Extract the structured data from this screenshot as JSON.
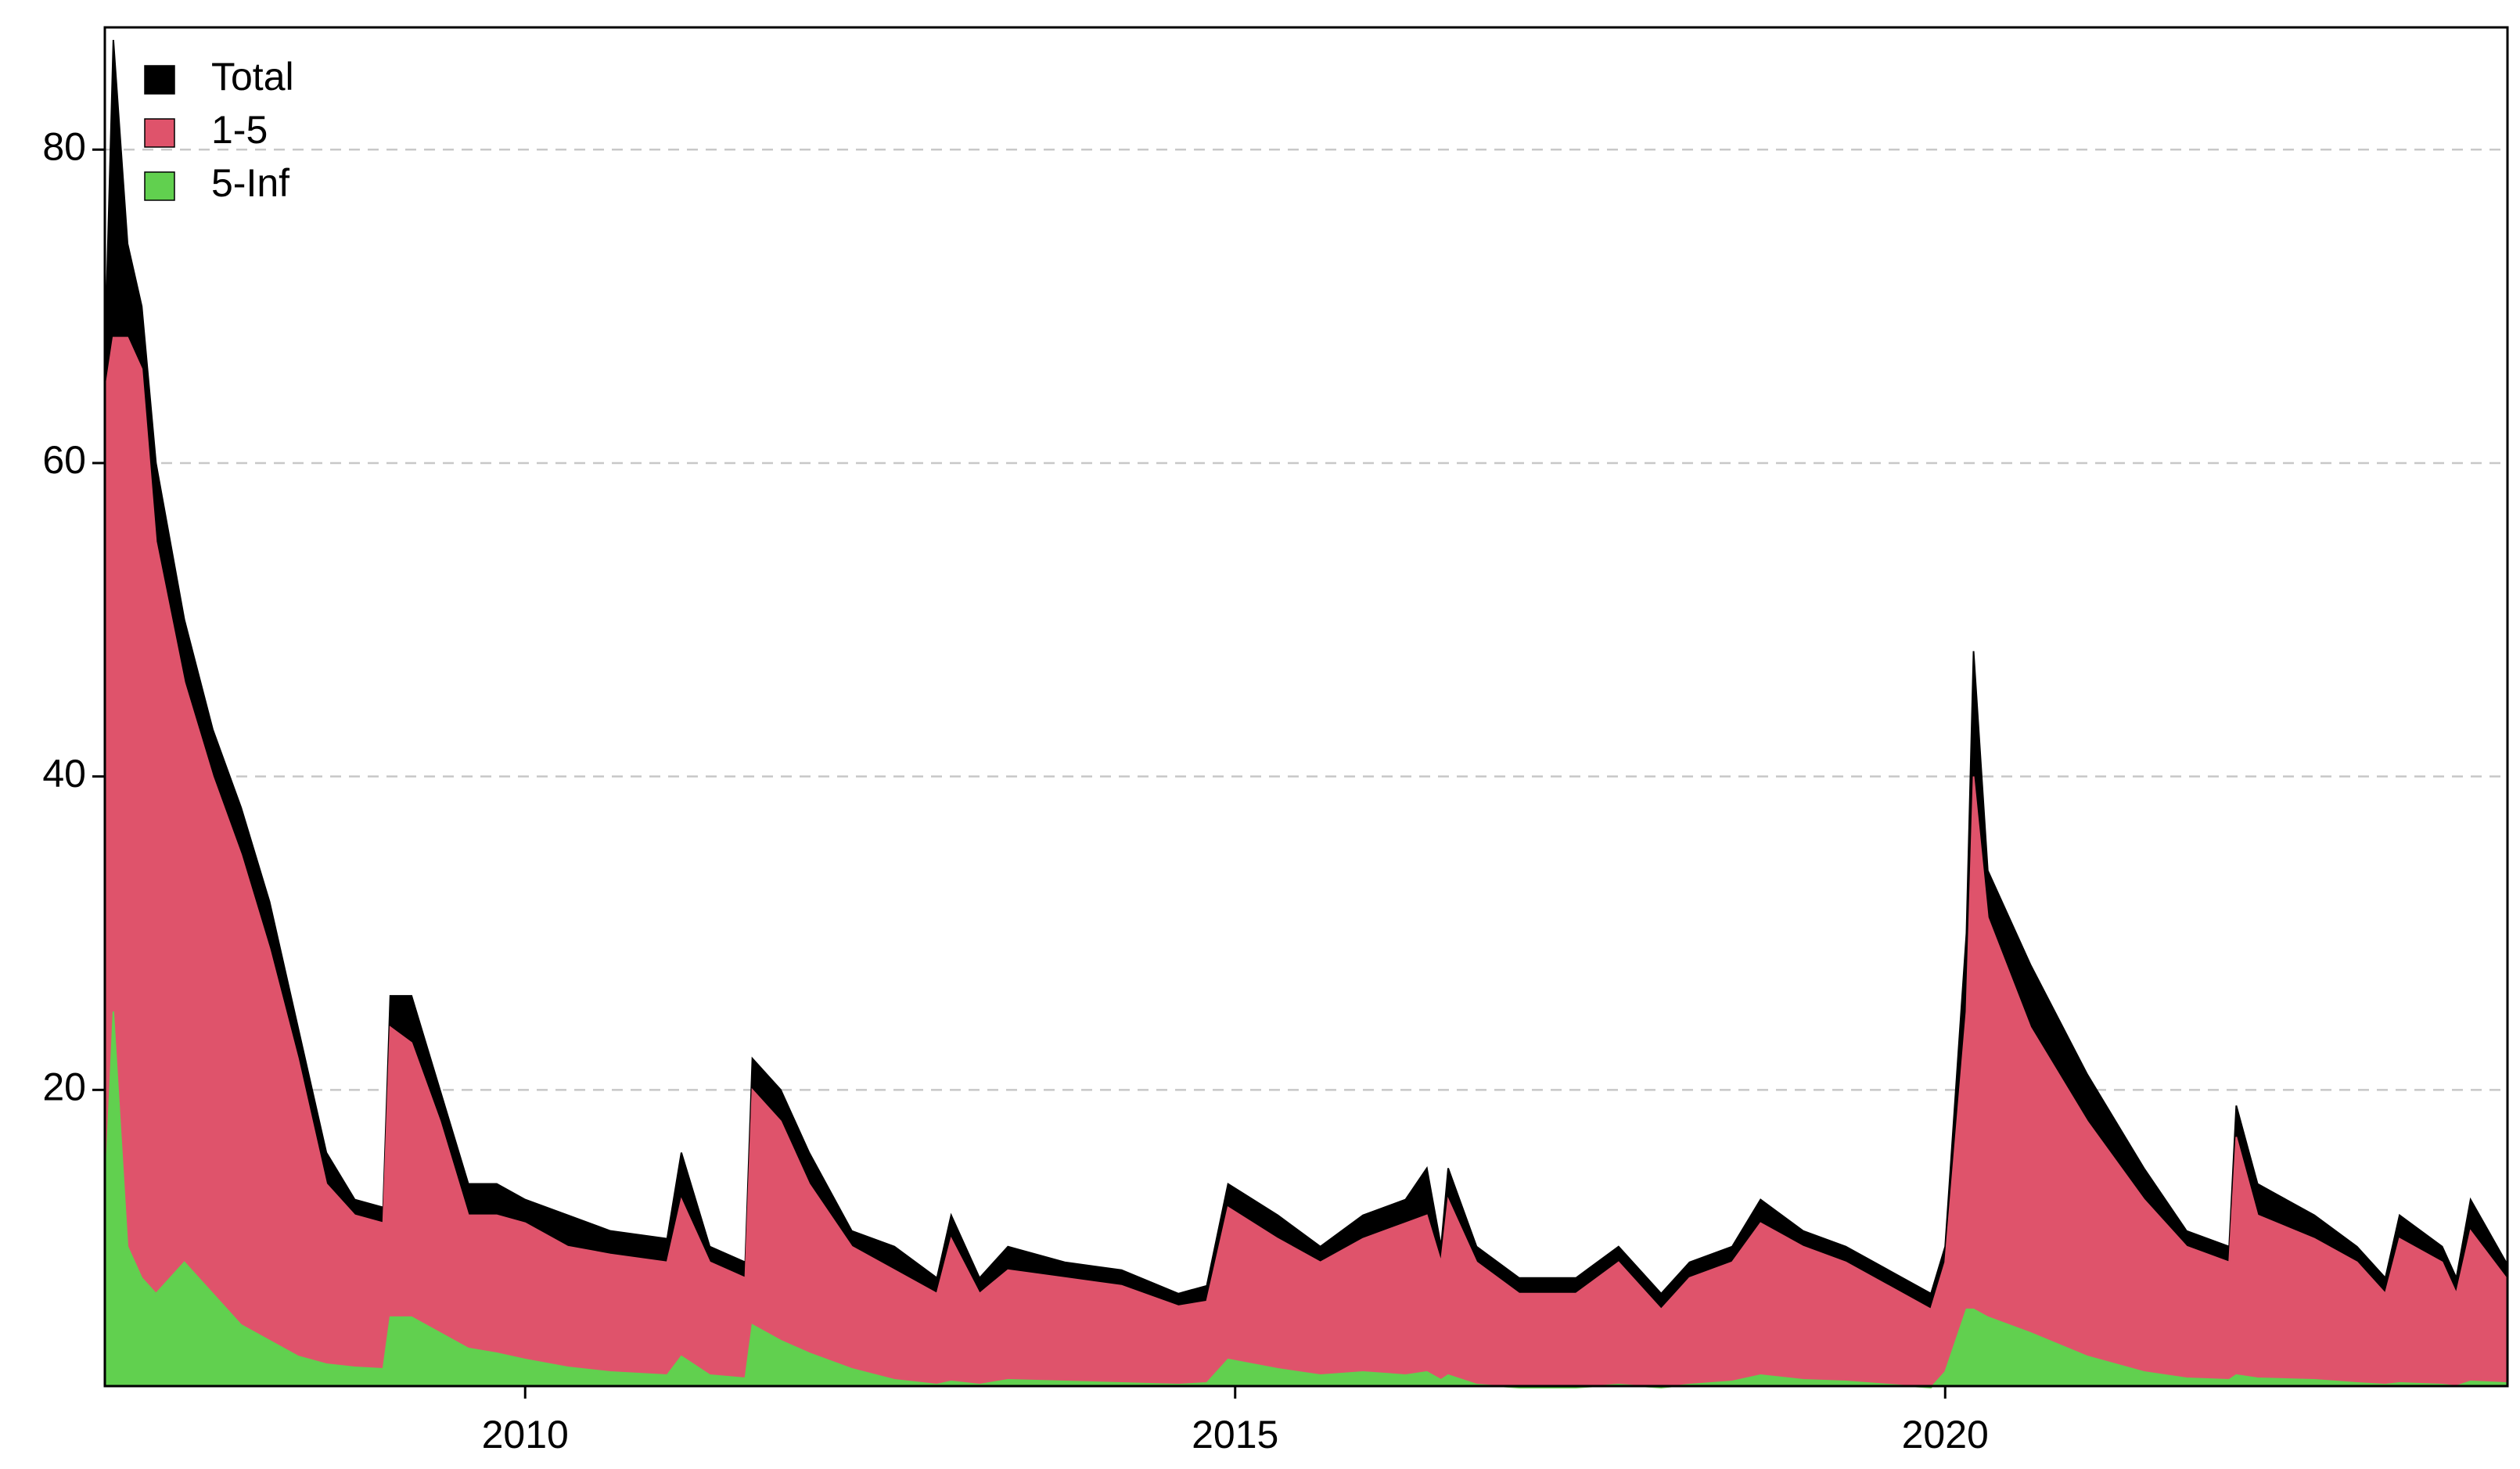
{
  "chart_data": {
    "type": "area",
    "x": [
      2007.05,
      2007.1,
      2007.2,
      2007.3,
      2007.4,
      2007.6,
      2007.8,
      2008.0,
      2008.2,
      2008.4,
      2008.6,
      2008.8,
      2009.0,
      2009.05,
      2009.2,
      2009.4,
      2009.6,
      2009.8,
      2010.0,
      2010.3,
      2010.6,
      2011.0,
      2011.1,
      2011.3,
      2011.55,
      2011.6,
      2011.8,
      2012.0,
      2012.3,
      2012.6,
      2012.9,
      2013.0,
      2013.2,
      2013.4,
      2013.8,
      2014.2,
      2014.6,
      2014.8,
      2014.95,
      2015.3,
      2015.6,
      2015.9,
      2016.2,
      2016.35,
      2016.45,
      2016.5,
      2016.7,
      2017.0,
      2017.4,
      2017.7,
      2018.0,
      2018.2,
      2018.5,
      2018.7,
      2019.0,
      2019.3,
      2019.6,
      2019.9,
      2020.0,
      2020.15,
      2020.2,
      2020.3,
      2020.6,
      2021.0,
      2021.4,
      2021.7,
      2022.0,
      2022.05,
      2022.2,
      2022.6,
      2022.9,
      2023.1,
      2023.2,
      2023.5,
      2023.6,
      2023.7,
      2023.95
    ],
    "series": [
      {
        "name": "Total",
        "color": "#000000",
        "values": [
          70,
          87,
          74,
          70,
          60,
          50,
          43,
          38,
          32,
          24,
          16,
          13,
          12.5,
          26,
          26,
          20,
          14,
          14,
          13,
          12,
          11,
          10.5,
          16,
          10,
          9,
          22,
          20,
          16,
          11,
          10,
          8,
          12,
          8,
          10,
          9,
          8.5,
          7,
          7.5,
          14,
          12,
          10,
          12,
          13,
          15,
          10,
          15,
          10,
          8,
          8,
          10,
          7,
          9,
          10,
          13,
          11,
          10,
          8.5,
          7,
          10,
          30,
          48,
          34,
          28,
          21,
          15,
          11,
          10,
          19,
          14,
          12,
          10,
          8,
          12,
          10,
          8,
          13,
          9
        ]
      },
      {
        "name": "1-5",
        "color": "#df536b",
        "values": [
          65,
          68,
          68,
          66,
          55,
          46,
          40,
          35,
          29,
          22,
          14,
          12,
          11.5,
          24,
          23,
          18,
          12,
          12,
          11.5,
          10,
          9.5,
          9,
          13,
          9,
          8,
          20,
          18,
          14,
          10,
          8.5,
          7,
          10.5,
          7,
          8.5,
          8,
          7.5,
          6.2,
          6.5,
          12.5,
          10.5,
          9,
          10.5,
          11.5,
          12,
          9,
          13,
          9,
          7,
          7,
          9,
          6,
          8,
          9,
          11.5,
          10,
          9,
          7.5,
          6,
          9,
          25,
          40,
          31,
          24,
          18,
          13,
          10,
          9,
          17,
          12,
          10.5,
          9,
          7,
          10.5,
          9,
          7,
          11,
          8
        ]
      },
      {
        "name": "5-Inf",
        "color": "#61d04f",
        "values": [
          15,
          25,
          10,
          8,
          7,
          9,
          7,
          5,
          4,
          3,
          2.5,
          2.3,
          2.2,
          5.5,
          5.5,
          4.5,
          3.5,
          3.2,
          2.8,
          2.3,
          2,
          1.8,
          3,
          1.8,
          1.6,
          5,
          4,
          3.2,
          2.2,
          1.5,
          1.2,
          1.4,
          1.2,
          1.5,
          1.4,
          1.3,
          1.2,
          1.3,
          2.8,
          2.2,
          1.8,
          2,
          1.8,
          2,
          1.5,
          1.8,
          1.2,
          1,
          1,
          1.2,
          1,
          1.2,
          1.4,
          1.8,
          1.5,
          1.4,
          1.2,
          1,
          2,
          6,
          6,
          5.5,
          4.5,
          3,
          2,
          1.6,
          1.5,
          1.8,
          1.6,
          1.5,
          1.3,
          1.2,
          1.3,
          1.2,
          1.1,
          1.4,
          1.3
        ]
      }
    ],
    "xlim": [
      2007.04,
      2023.96
    ],
    "xticks": [
      2010,
      2015,
      2020
    ],
    "ylim": [
      1.1,
      87.8
    ],
    "yticks": [
      20,
      40,
      60,
      80
    ],
    "grid": true,
    "legend": "top-left"
  }
}
